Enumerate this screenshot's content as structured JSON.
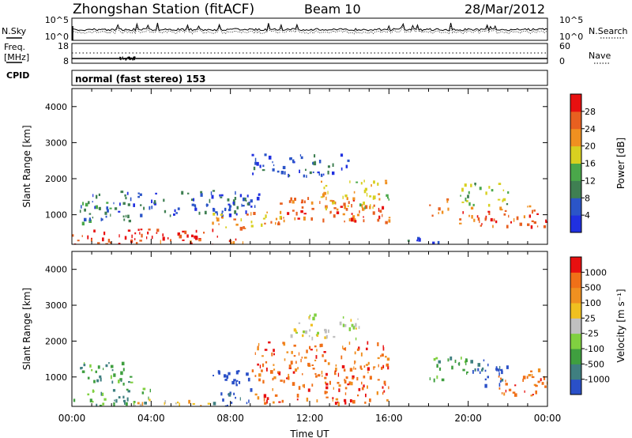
{
  "header": {
    "station": "Zhongshan Station (fitACF)",
    "beam": "Beam 10",
    "date": "28/Mar/2012"
  },
  "noise_panel": {
    "left_label": "N.Sky",
    "right_label": "N.Search",
    "left_ticks": [
      "10^5",
      "10^0"
    ],
    "right_ticks": [
      "10^5",
      "10^0"
    ]
  },
  "freq_panel": {
    "left_label_line1": "Freq.",
    "left_label_line2": "[MHz]",
    "right_label": "Nave",
    "left_ticks": [
      "18",
      "8"
    ],
    "right_ticks": [
      "60",
      "0"
    ]
  },
  "cpid": {
    "label": "CPID",
    "mode": "normal (fast stereo) 153"
  },
  "chart_data": [
    {
      "type": "heatmap",
      "title": "",
      "quantity": "Power",
      "ylabel": "Slant Range [km]",
      "xlabel": "Time UT",
      "ylim": [
        180,
        4500
      ],
      "yticks": [
        "1000",
        "2000",
        "3000",
        "4000"
      ],
      "xticks": [
        "00:00",
        "04:00",
        "08:00",
        "12:00",
        "16:00",
        "20:00",
        "00:00"
      ],
      "colorbar": {
        "label": "Power [dB]",
        "ticks": [
          "4",
          "8",
          "12",
          "16",
          "20",
          "24",
          "28"
        ],
        "colors": [
          "#2030e0",
          "#2b55c8",
          "#3f7f52",
          "#4aa84a",
          "#d8d020",
          "#f09020",
          "#e86020",
          "#e81010"
        ]
      },
      "regions": [
        {
          "t0": 0.0,
          "t1": 7.5,
          "r0": 280,
          "r1": 620,
          "level": 7
        },
        {
          "t0": 0.0,
          "t1": 10.0,
          "r0": 180,
          "r1": 350,
          "level": 6
        },
        {
          "t0": 0.3,
          "t1": 3.0,
          "r0": 800,
          "r1": 1400,
          "level": 2
        },
        {
          "t0": 1.0,
          "t1": 9.5,
          "r0": 1000,
          "r1": 1700,
          "level": 1
        },
        {
          "t0": 7.0,
          "t1": 10.5,
          "r0": 600,
          "r1": 1100,
          "level": 5
        },
        {
          "t0": 10.0,
          "t1": 16.0,
          "r0": 800,
          "r1": 1500,
          "level": 6
        },
        {
          "t0": 12.5,
          "t1": 16.0,
          "r0": 1200,
          "r1": 2000,
          "level": 4
        },
        {
          "t0": 9.0,
          "t1": 14.0,
          "r0": 2100,
          "r1": 2700,
          "level": 1
        },
        {
          "t0": 18.0,
          "t1": 19.0,
          "r0": 1000,
          "r1": 1500,
          "level": 5
        },
        {
          "t0": 19.5,
          "t1": 24.0,
          "r0": 700,
          "r1": 1300,
          "level": 6
        },
        {
          "t0": 19.5,
          "t1": 22.0,
          "r0": 1300,
          "r1": 1900,
          "level": 3
        },
        {
          "t0": 16.0,
          "t1": 18.5,
          "r0": 250,
          "r1": 400,
          "level": 1
        }
      ]
    },
    {
      "type": "heatmap",
      "title": "",
      "quantity": "Velocity",
      "ylabel": "Slant Range [km]",
      "xlabel": "Time UT",
      "ylim": [
        180,
        4500
      ],
      "yticks": [
        "1000",
        "2000",
        "3000",
        "4000"
      ],
      "xticks": [
        "00:00",
        "04:00",
        "08:00",
        "12:00",
        "16:00",
        "20:00",
        "00:00"
      ],
      "colorbar": {
        "label": "Velocity [m s⁻¹]",
        "ticks": [
          "1000",
          "500",
          "100",
          "25",
          "-25",
          "-100",
          "-500",
          "-1000"
        ],
        "colors": [
          "#2a50c8",
          "#3f7f80",
          "#3f9f3f",
          "#80d040",
          "#c0c0c0",
          "#f0c020",
          "#f09020",
          "#f07018",
          "#e81010"
        ]
      },
      "regions": [
        {
          "t0": 0.0,
          "t1": 4.0,
          "r0": 180,
          "r1": 700,
          "level": 2
        },
        {
          "t0": 0.3,
          "t1": 3.0,
          "r0": 800,
          "r1": 1500,
          "level": 2
        },
        {
          "t0": 3.0,
          "t1": 7.0,
          "r0": 180,
          "r1": 400,
          "level": 5
        },
        {
          "t0": 7.0,
          "t1": 9.0,
          "r0": 200,
          "r1": 1200,
          "level": 0
        },
        {
          "t0": 9.0,
          "t1": 16.0,
          "r0": 300,
          "r1": 2000,
          "level": 7
        },
        {
          "t0": 11.0,
          "t1": 14.5,
          "r0": 2100,
          "r1": 2800,
          "level": 4
        },
        {
          "t0": 18.0,
          "t1": 20.0,
          "r0": 900,
          "r1": 1600,
          "level": 2
        },
        {
          "t0": 20.0,
          "t1": 22.0,
          "r0": 700,
          "r1": 1500,
          "level": 0
        },
        {
          "t0": 21.5,
          "t1": 24.0,
          "r0": 500,
          "r1": 1300,
          "level": 7
        }
      ]
    }
  ]
}
